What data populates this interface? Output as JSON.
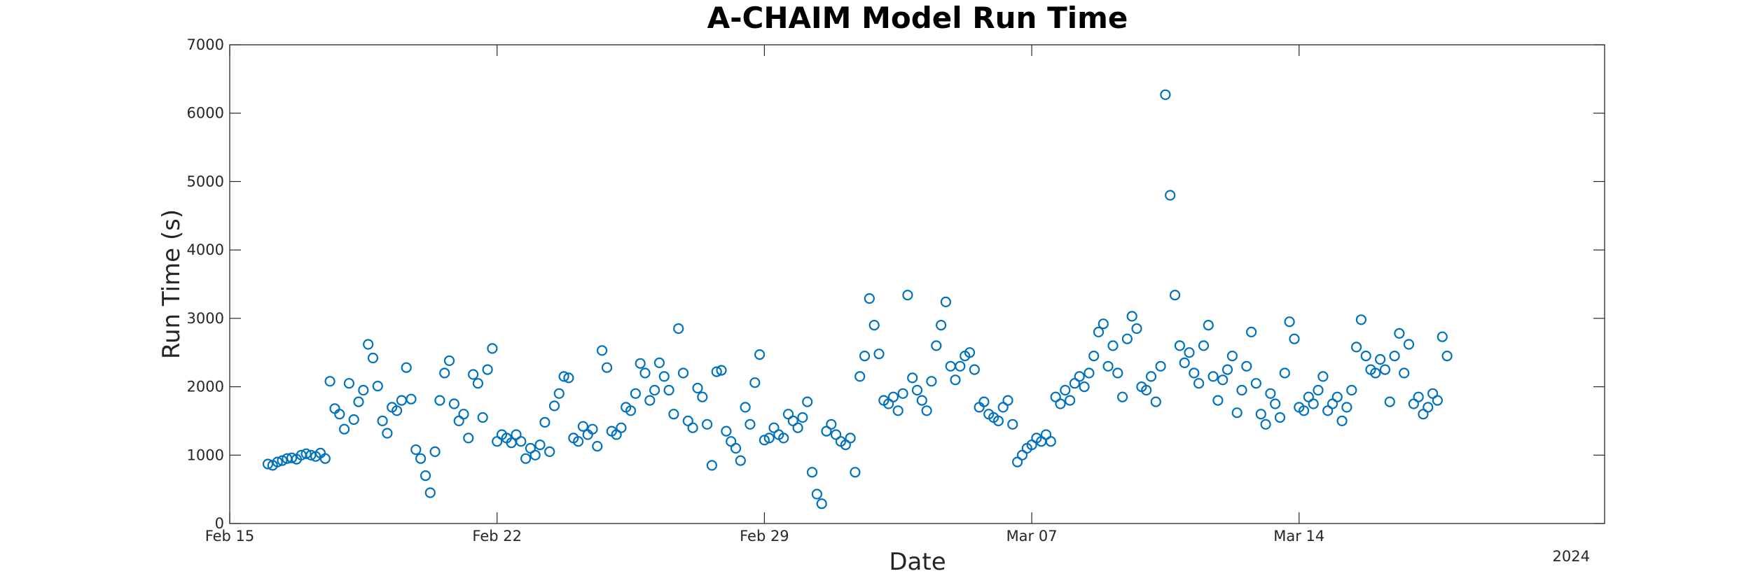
{
  "chart_data": {
    "type": "scatter",
    "title": "A-CHAIM Model Run Time",
    "xlabel": "Date",
    "ylabel": "Run Time (s)",
    "x_axis": {
      "kind": "date",
      "range": [
        "2024-02-15",
        "2024-03-22"
      ],
      "ticks": [
        {
          "date": "2024-02-15",
          "label": "Feb 15"
        },
        {
          "date": "2024-02-22",
          "label": "Feb 22"
        },
        {
          "date": "2024-02-29",
          "label": "Feb 29"
        },
        {
          "date": "2024-03-07",
          "label": "Mar 07"
        },
        {
          "date": "2024-03-14",
          "label": "Mar 14"
        }
      ],
      "year_label": "2024"
    },
    "y_axis": {
      "range": [
        0,
        7000
      ],
      "ticks": [
        0,
        1000,
        2000,
        3000,
        4000,
        5000,
        6000,
        7000
      ]
    },
    "grid": false,
    "marker": "open circle",
    "color": "#0072BD",
    "series": [
      {
        "points": [
          [
            "2024-02-16 00:00",
            870
          ],
          [
            "2024-02-16 03:00",
            850
          ],
          [
            "2024-02-16 06:00",
            900
          ],
          [
            "2024-02-16 09:00",
            920
          ],
          [
            "2024-02-16 12:00",
            950
          ],
          [
            "2024-02-16 15:00",
            960
          ],
          [
            "2024-02-16 18:00",
            940
          ],
          [
            "2024-02-16 21:00",
            1000
          ],
          [
            "2024-02-17 00:00",
            1020
          ],
          [
            "2024-02-17 03:00",
            1000
          ],
          [
            "2024-02-17 06:00",
            980
          ],
          [
            "2024-02-17 09:00",
            1030
          ],
          [
            "2024-02-17 12:00",
            950
          ],
          [
            "2024-02-17 15:00",
            2080
          ],
          [
            "2024-02-17 18:00",
            1680
          ],
          [
            "2024-02-17 21:00",
            1600
          ],
          [
            "2024-02-18 00:00",
            1380
          ],
          [
            "2024-02-18 03:00",
            2050
          ],
          [
            "2024-02-18 06:00",
            1520
          ],
          [
            "2024-02-18 09:00",
            1780
          ],
          [
            "2024-02-18 12:00",
            1950
          ],
          [
            "2024-02-18 15:00",
            2620
          ],
          [
            "2024-02-18 18:00",
            2420
          ],
          [
            "2024-02-18 21:00",
            2010
          ],
          [
            "2024-02-19 00:00",
            1500
          ],
          [
            "2024-02-19 03:00",
            1320
          ],
          [
            "2024-02-19 06:00",
            1700
          ],
          [
            "2024-02-19 09:00",
            1650
          ],
          [
            "2024-02-19 12:00",
            1800
          ],
          [
            "2024-02-19 15:00",
            2280
          ],
          [
            "2024-02-19 18:00",
            1820
          ],
          [
            "2024-02-19 21:00",
            1080
          ],
          [
            "2024-02-20 00:00",
            950
          ],
          [
            "2024-02-20 03:00",
            700
          ],
          [
            "2024-02-20 06:00",
            450
          ],
          [
            "2024-02-20 09:00",
            1050
          ],
          [
            "2024-02-20 12:00",
            1800
          ],
          [
            "2024-02-20 15:00",
            2200
          ],
          [
            "2024-02-20 18:00",
            2380
          ],
          [
            "2024-02-20 21:00",
            1750
          ],
          [
            "2024-02-21 00:00",
            1500
          ],
          [
            "2024-02-21 03:00",
            1600
          ],
          [
            "2024-02-21 06:00",
            1250
          ],
          [
            "2024-02-21 09:00",
            2180
          ],
          [
            "2024-02-21 12:00",
            2050
          ],
          [
            "2024-02-21 15:00",
            1550
          ],
          [
            "2024-02-21 18:00",
            2250
          ],
          [
            "2024-02-21 21:00",
            2560
          ],
          [
            "2024-02-22 00:00",
            1200
          ],
          [
            "2024-02-22 03:00",
            1300
          ],
          [
            "2024-02-22 06:00",
            1250
          ],
          [
            "2024-02-22 09:00",
            1180
          ],
          [
            "2024-02-22 12:00",
            1300
          ],
          [
            "2024-02-22 15:00",
            1200
          ],
          [
            "2024-02-22 18:00",
            950
          ],
          [
            "2024-02-22 21:00",
            1100
          ],
          [
            "2024-02-23 00:00",
            1000
          ],
          [
            "2024-02-23 03:00",
            1150
          ],
          [
            "2024-02-23 06:00",
            1480
          ],
          [
            "2024-02-23 09:00",
            1050
          ],
          [
            "2024-02-23 12:00",
            1720
          ],
          [
            "2024-02-23 15:00",
            1900
          ],
          [
            "2024-02-23 18:00",
            2150
          ],
          [
            "2024-02-23 21:00",
            2130
          ],
          [
            "2024-02-24 00:00",
            1250
          ],
          [
            "2024-02-24 03:00",
            1200
          ],
          [
            "2024-02-24 06:00",
            1420
          ],
          [
            "2024-02-24 09:00",
            1300
          ],
          [
            "2024-02-24 12:00",
            1380
          ],
          [
            "2024-02-24 15:00",
            1130
          ],
          [
            "2024-02-24 18:00",
            2530
          ],
          [
            "2024-02-24 21:00",
            2280
          ],
          [
            "2024-02-25 00:00",
            1350
          ],
          [
            "2024-02-25 03:00",
            1300
          ],
          [
            "2024-02-25 06:00",
            1400
          ],
          [
            "2024-02-25 09:00",
            1700
          ],
          [
            "2024-02-25 12:00",
            1650
          ],
          [
            "2024-02-25 15:00",
            1900
          ],
          [
            "2024-02-25 18:00",
            2340
          ],
          [
            "2024-02-25 21:00",
            2200
          ],
          [
            "2024-02-26 00:00",
            1800
          ],
          [
            "2024-02-26 03:00",
            1950
          ],
          [
            "2024-02-26 06:00",
            2350
          ],
          [
            "2024-02-26 09:00",
            2150
          ],
          [
            "2024-02-26 12:00",
            1950
          ],
          [
            "2024-02-26 15:00",
            1600
          ],
          [
            "2024-02-26 18:00",
            2850
          ],
          [
            "2024-02-26 21:00",
            2200
          ],
          [
            "2024-02-27 00:00",
            1500
          ],
          [
            "2024-02-27 03:00",
            1400
          ],
          [
            "2024-02-27 06:00",
            1980
          ],
          [
            "2024-02-27 09:00",
            1850
          ],
          [
            "2024-02-27 12:00",
            1450
          ],
          [
            "2024-02-27 15:00",
            850
          ],
          [
            "2024-02-27 18:00",
            2220
          ],
          [
            "2024-02-27 21:00",
            2240
          ],
          [
            "2024-02-28 00:00",
            1350
          ],
          [
            "2024-02-28 03:00",
            1200
          ],
          [
            "2024-02-28 06:00",
            1100
          ],
          [
            "2024-02-28 09:00",
            920
          ],
          [
            "2024-02-28 12:00",
            1700
          ],
          [
            "2024-02-28 15:00",
            1450
          ],
          [
            "2024-02-28 18:00",
            2060
          ],
          [
            "2024-02-28 21:00",
            2470
          ],
          [
            "2024-02-29 00:00",
            1220
          ],
          [
            "2024-02-29 03:00",
            1250
          ],
          [
            "2024-02-29 06:00",
            1400
          ],
          [
            "2024-02-29 09:00",
            1300
          ],
          [
            "2024-02-29 12:00",
            1250
          ],
          [
            "2024-02-29 15:00",
            1600
          ],
          [
            "2024-02-29 18:00",
            1500
          ],
          [
            "2024-02-29 21:00",
            1400
          ],
          [
            "2024-03-01 00:00",
            1550
          ],
          [
            "2024-03-01 03:00",
            1780
          ],
          [
            "2024-03-01 06:00",
            750
          ],
          [
            "2024-03-01 09:00",
            430
          ],
          [
            "2024-03-01 12:00",
            290
          ],
          [
            "2024-03-01 15:00",
            1350
          ],
          [
            "2024-03-01 18:00",
            1450
          ],
          [
            "2024-03-01 21:00",
            1300
          ],
          [
            "2024-03-02 00:00",
            1200
          ],
          [
            "2024-03-02 03:00",
            1150
          ],
          [
            "2024-03-02 06:00",
            1250
          ],
          [
            "2024-03-02 09:00",
            750
          ],
          [
            "2024-03-02 12:00",
            2150
          ],
          [
            "2024-03-02 15:00",
            2450
          ],
          [
            "2024-03-02 18:00",
            3290
          ],
          [
            "2024-03-02 21:00",
            2900
          ],
          [
            "2024-03-03 00:00",
            2480
          ],
          [
            "2024-03-03 03:00",
            1800
          ],
          [
            "2024-03-03 06:00",
            1750
          ],
          [
            "2024-03-03 09:00",
            1850
          ],
          [
            "2024-03-03 12:00",
            1650
          ],
          [
            "2024-03-03 15:00",
            1900
          ],
          [
            "2024-03-03 18:00",
            3340
          ],
          [
            "2024-03-03 21:00",
            2130
          ],
          [
            "2024-03-04 00:00",
            1950
          ],
          [
            "2024-03-04 03:00",
            1800
          ],
          [
            "2024-03-04 06:00",
            1650
          ],
          [
            "2024-03-04 09:00",
            2080
          ],
          [
            "2024-03-04 12:00",
            2600
          ],
          [
            "2024-03-04 15:00",
            2900
          ],
          [
            "2024-03-04 18:00",
            3240
          ],
          [
            "2024-03-04 21:00",
            2300
          ],
          [
            "2024-03-05 00:00",
            2100
          ],
          [
            "2024-03-05 03:00",
            2300
          ],
          [
            "2024-03-05 06:00",
            2450
          ],
          [
            "2024-03-05 09:00",
            2500
          ],
          [
            "2024-03-05 12:00",
            2250
          ],
          [
            "2024-03-05 15:00",
            1700
          ],
          [
            "2024-03-05 18:00",
            1780
          ],
          [
            "2024-03-05 21:00",
            1600
          ],
          [
            "2024-03-06 00:00",
            1550
          ],
          [
            "2024-03-06 03:00",
            1500
          ],
          [
            "2024-03-06 06:00",
            1700
          ],
          [
            "2024-03-06 09:00",
            1800
          ],
          [
            "2024-03-06 12:00",
            1450
          ],
          [
            "2024-03-06 15:00",
            900
          ],
          [
            "2024-03-06 18:00",
            1000
          ],
          [
            "2024-03-06 21:00",
            1100
          ],
          [
            "2024-03-07 00:00",
            1150
          ],
          [
            "2024-03-07 03:00",
            1250
          ],
          [
            "2024-03-07 06:00",
            1200
          ],
          [
            "2024-03-07 09:00",
            1300
          ],
          [
            "2024-03-07 12:00",
            1200
          ],
          [
            "2024-03-07 15:00",
            1850
          ],
          [
            "2024-03-07 18:00",
            1750
          ],
          [
            "2024-03-07 21:00",
            1950
          ],
          [
            "2024-03-08 00:00",
            1800
          ],
          [
            "2024-03-08 03:00",
            2050
          ],
          [
            "2024-03-08 06:00",
            2150
          ],
          [
            "2024-03-08 09:00",
            2000
          ],
          [
            "2024-03-08 12:00",
            2200
          ],
          [
            "2024-03-08 15:00",
            2450
          ],
          [
            "2024-03-08 18:00",
            2800
          ],
          [
            "2024-03-08 21:00",
            2920
          ],
          [
            "2024-03-09 00:00",
            2300
          ],
          [
            "2024-03-09 03:00",
            2600
          ],
          [
            "2024-03-09 06:00",
            2200
          ],
          [
            "2024-03-09 09:00",
            1850
          ],
          [
            "2024-03-09 12:00",
            2700
          ],
          [
            "2024-03-09 15:00",
            3030
          ],
          [
            "2024-03-09 18:00",
            2850
          ],
          [
            "2024-03-09 21:00",
            2000
          ],
          [
            "2024-03-10 00:00",
            1950
          ],
          [
            "2024-03-10 03:00",
            2150
          ],
          [
            "2024-03-10 06:00",
            1780
          ],
          [
            "2024-03-10 09:00",
            2300
          ],
          [
            "2024-03-10 12:00",
            6270
          ],
          [
            "2024-03-10 15:00",
            4800
          ],
          [
            "2024-03-10 18:00",
            3340
          ],
          [
            "2024-03-10 21:00",
            2600
          ],
          [
            "2024-03-11 00:00",
            2350
          ],
          [
            "2024-03-11 03:00",
            2500
          ],
          [
            "2024-03-11 06:00",
            2200
          ],
          [
            "2024-03-11 09:00",
            2050
          ],
          [
            "2024-03-11 12:00",
            2600
          ],
          [
            "2024-03-11 15:00",
            2900
          ],
          [
            "2024-03-11 18:00",
            2150
          ],
          [
            "2024-03-11 21:00",
            1800
          ],
          [
            "2024-03-12 00:00",
            2100
          ],
          [
            "2024-03-12 03:00",
            2250
          ],
          [
            "2024-03-12 06:00",
            2450
          ],
          [
            "2024-03-12 09:00",
            1620
          ],
          [
            "2024-03-12 12:00",
            1950
          ],
          [
            "2024-03-12 15:00",
            2300
          ],
          [
            "2024-03-12 18:00",
            2800
          ],
          [
            "2024-03-12 21:00",
            2050
          ],
          [
            "2024-03-13 00:00",
            1600
          ],
          [
            "2024-03-13 03:00",
            1450
          ],
          [
            "2024-03-13 06:00",
            1900
          ],
          [
            "2024-03-13 09:00",
            1750
          ],
          [
            "2024-03-13 12:00",
            1550
          ],
          [
            "2024-03-13 15:00",
            2200
          ],
          [
            "2024-03-13 18:00",
            2950
          ],
          [
            "2024-03-13 21:00",
            2700
          ],
          [
            "2024-03-14 00:00",
            1700
          ],
          [
            "2024-03-14 03:00",
            1650
          ],
          [
            "2024-03-14 06:00",
            1850
          ],
          [
            "2024-03-14 09:00",
            1750
          ],
          [
            "2024-03-14 12:00",
            1950
          ],
          [
            "2024-03-14 15:00",
            2150
          ],
          [
            "2024-03-14 18:00",
            1650
          ],
          [
            "2024-03-14 21:00",
            1750
          ],
          [
            "2024-03-15 00:00",
            1850
          ],
          [
            "2024-03-15 03:00",
            1500
          ],
          [
            "2024-03-15 06:00",
            1700
          ],
          [
            "2024-03-15 09:00",
            1950
          ],
          [
            "2024-03-15 12:00",
            2580
          ],
          [
            "2024-03-15 15:00",
            2980
          ],
          [
            "2024-03-15 18:00",
            2450
          ],
          [
            "2024-03-15 21:00",
            2250
          ],
          [
            "2024-03-16 00:00",
            2200
          ],
          [
            "2024-03-16 03:00",
            2400
          ],
          [
            "2024-03-16 06:00",
            2250
          ],
          [
            "2024-03-16 09:00",
            1780
          ],
          [
            "2024-03-16 12:00",
            2450
          ],
          [
            "2024-03-16 15:00",
            2780
          ],
          [
            "2024-03-16 18:00",
            2200
          ],
          [
            "2024-03-16 21:00",
            2620
          ],
          [
            "2024-03-17 00:00",
            1750
          ],
          [
            "2024-03-17 03:00",
            1850
          ],
          [
            "2024-03-17 06:00",
            1600
          ],
          [
            "2024-03-17 09:00",
            1700
          ],
          [
            "2024-03-17 12:00",
            1900
          ],
          [
            "2024-03-17 15:00",
            1800
          ],
          [
            "2024-03-17 18:00",
            2730
          ],
          [
            "2024-03-17 21:00",
            2450
          ]
        ]
      }
    ]
  }
}
